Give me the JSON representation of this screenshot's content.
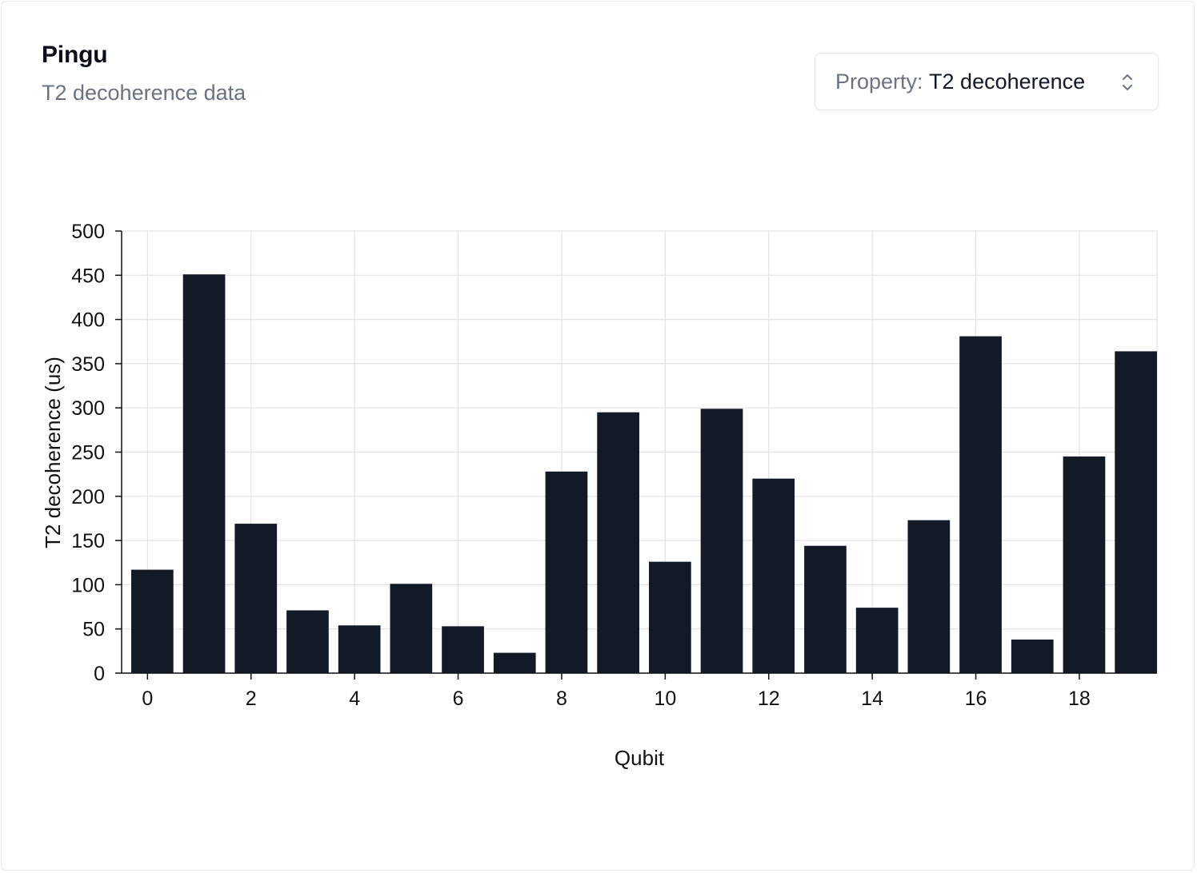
{
  "card": {
    "title": "Pingu",
    "subtitle": "T2 decoherence data"
  },
  "property_select": {
    "prefix": "Property: ",
    "value": "T2 decoherence",
    "icon": "chevron-up-down-icon"
  },
  "chart_data": {
    "type": "bar",
    "categories": [
      0,
      1,
      2,
      3,
      4,
      5,
      6,
      7,
      8,
      9,
      10,
      11,
      12,
      13,
      14,
      15,
      16,
      17,
      18,
      19
    ],
    "values": [
      117,
      451,
      169,
      71,
      54,
      101,
      53,
      23,
      228,
      295,
      126,
      299,
      220,
      144,
      74,
      173,
      381,
      38,
      245,
      364
    ],
    "xlabel": "Qubit",
    "ylabel": "T2 decoherence (us)",
    "ylim": [
      0,
      500
    ],
    "yticks": [
      0,
      50,
      100,
      150,
      200,
      250,
      300,
      350,
      400,
      450,
      500
    ],
    "xticks": [
      0,
      2,
      4,
      6,
      8,
      10,
      12,
      14,
      16,
      18
    ],
    "grid": true,
    "bar_color": "#131a27",
    "grid_color": "#e3e3e3"
  }
}
